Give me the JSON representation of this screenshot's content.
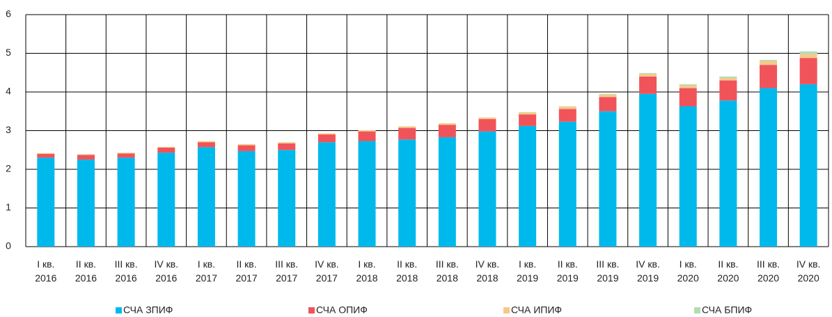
{
  "chart_data": {
    "type": "stacked_bar",
    "categories": [
      "I кв. 2016",
      "II кв. 2016",
      "III кв. 2016",
      "IV кв. 2016",
      "I кв. 2017",
      "II кв. 2017",
      "III кв. 2017",
      "IV кв. 2017",
      "I кв. 2018",
      "II кв. 2018",
      "III кв. 2018",
      "IV кв. 2018",
      "I кв. 2019",
      "II кв. 2019",
      "III кв. 2019",
      "IV кв. 2019",
      "I кв. 2020",
      "II кв. 2020",
      "III кв. 2020",
      "IV кв. 2020"
    ],
    "series": [
      {
        "name": "СЧА ЗПИФ",
        "color": "#00b9ec",
        "values": [
          2.3,
          2.25,
          2.3,
          2.43,
          2.57,
          2.47,
          2.5,
          2.7,
          2.73,
          2.77,
          2.83,
          2.98,
          3.12,
          3.23,
          3.5,
          3.95,
          3.63,
          3.78,
          4.1,
          4.2
        ]
      },
      {
        "name": "СЧА ОПИФ",
        "color": "#f0545a",
        "values": [
          0.1,
          0.12,
          0.11,
          0.13,
          0.13,
          0.15,
          0.17,
          0.2,
          0.25,
          0.3,
          0.32,
          0.32,
          0.3,
          0.33,
          0.37,
          0.45,
          0.47,
          0.52,
          0.6,
          0.68
        ]
      },
      {
        "name": "СЧА ИПИФ",
        "color": "#f5c98a",
        "values": [
          0.02,
          0.02,
          0.02,
          0.02,
          0.03,
          0.03,
          0.03,
          0.03,
          0.03,
          0.04,
          0.04,
          0.04,
          0.05,
          0.06,
          0.06,
          0.07,
          0.07,
          0.06,
          0.1,
          0.1
        ]
      },
      {
        "name": "СЧА БПИФ",
        "color": "#b5dcb5",
        "values": [
          0,
          0,
          0,
          0,
          0,
          0,
          0,
          0,
          0,
          0,
          0,
          0,
          0.01,
          0.01,
          0.02,
          0.02,
          0.03,
          0.04,
          0.03,
          0.07
        ]
      }
    ],
    "ylim": [
      0,
      6
    ],
    "yticks": [
      0,
      1,
      2,
      3,
      4,
      5,
      6
    ],
    "grid": true,
    "legend": "bottom"
  }
}
